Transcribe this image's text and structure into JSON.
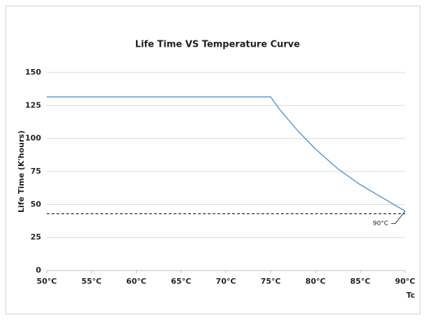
{
  "chart_data": {
    "type": "line",
    "title": "Life Time VS  Temperature Curve",
    "xlabel": "Tc",
    "ylabel": "Life Time (K'hours)",
    "x": [
      50,
      75,
      76,
      77,
      78,
      79,
      80,
      82.5,
      85,
      87.5,
      90
    ],
    "series": [
      {
        "color": "#5b9bd5",
        "values": [
          131.5,
          131.5,
          122,
          114,
          106,
          99,
          92,
          77,
          65,
          55,
          45
        ]
      }
    ],
    "xlim": [
      50,
      90
    ],
    "xticks": [
      {
        "value": 50,
        "label": "50°C"
      },
      {
        "value": 55,
        "label": "55°C"
      },
      {
        "value": 60,
        "label": "60°C"
      },
      {
        "value": 65,
        "label": "65°C"
      },
      {
        "value": 70,
        "label": "70°C"
      },
      {
        "value": 75,
        "label": "75°C"
      },
      {
        "value": 80,
        "label": "80°C"
      },
      {
        "value": 85,
        "label": "85°C"
      },
      {
        "value": 90,
        "label": "90°C"
      }
    ],
    "ylim": [
      0,
      150
    ],
    "yticks": [
      0,
      25,
      50,
      75,
      100,
      125,
      150
    ],
    "grid": true,
    "reference_line": {
      "value": 43,
      "label": "90°C",
      "color": "#000000"
    }
  }
}
